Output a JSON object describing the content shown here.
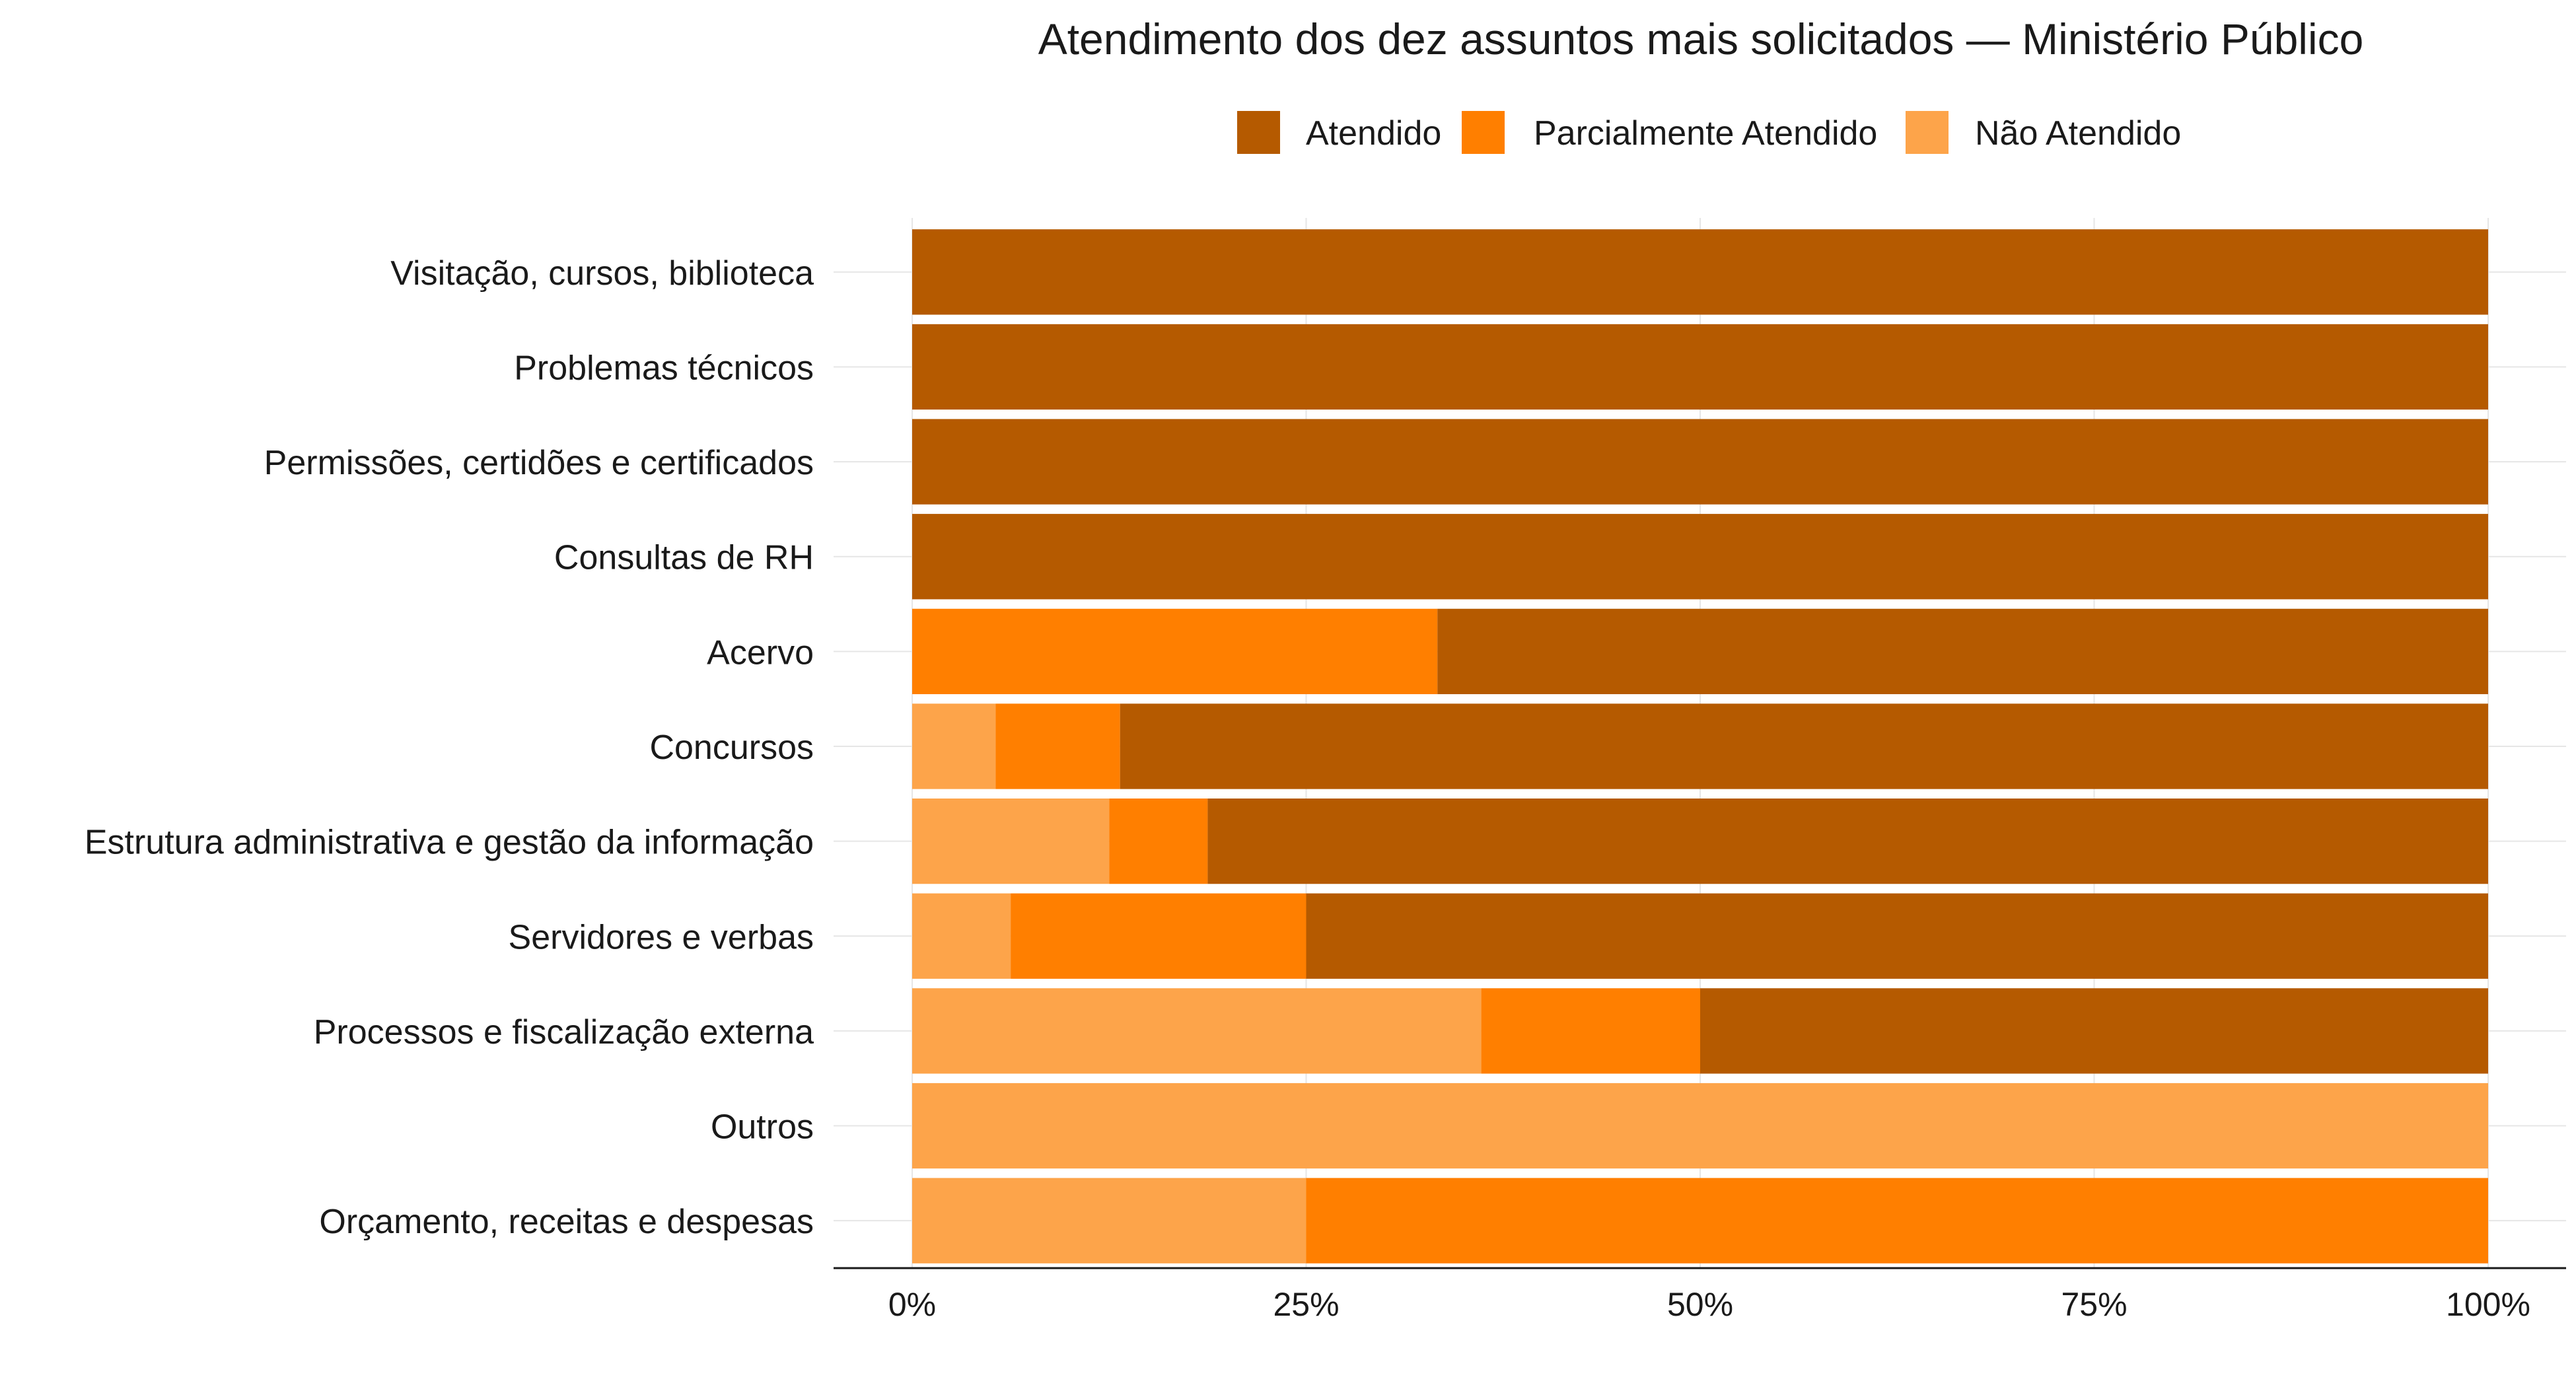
{
  "chart_data": {
    "type": "bar",
    "orientation": "horizontal",
    "stacked": true,
    "title": "Atendimento dos dez assuntos mais solicitados — Ministério Público",
    "xlabel": "",
    "ylabel": "",
    "xlim": [
      0,
      1
    ],
    "x_ticks": [
      "0%",
      "25%",
      "50%",
      "75%",
      "100%"
    ],
    "x_tick_values": [
      0,
      0.25,
      0.5,
      0.75,
      1
    ],
    "grid": true,
    "legend_position": "top",
    "categories": [
      "Visitação, cursos, biblioteca",
      "Problemas técnicos",
      "Permissões, certidões e certificados",
      "Consultas de RH",
      "Acervo",
      "Concursos",
      "Estrutura administrativa e gestão da informação",
      "Servidores e verbas",
      "Processos e fiscalização externa",
      "Outros",
      "Orçamento, receitas e despesas"
    ],
    "series": [
      {
        "name": "Não Atendido",
        "color": "#fda44a",
        "values": [
          0,
          0,
          0,
          0,
          0,
          0.053,
          0.125,
          0.0625,
          0.3611,
          1.0,
          0.25
        ]
      },
      {
        "name": "Parcialmente Atendido",
        "color": "#ff7f00",
        "values": [
          0,
          0,
          0,
          0,
          0.3333,
          0.0789,
          0.0625,
          0.1875,
          0.1389,
          0,
          0.75
        ]
      },
      {
        "name": "Atendido",
        "color": "#b55a00",
        "values": [
          1.0,
          1.0,
          1.0,
          1.0,
          0.6667,
          0.8681,
          0.8125,
          0.75,
          0.5,
          0,
          0
        ]
      }
    ],
    "legend_order": [
      "Atendido",
      "Parcialmente Atendido",
      "Não Atendido"
    ]
  }
}
